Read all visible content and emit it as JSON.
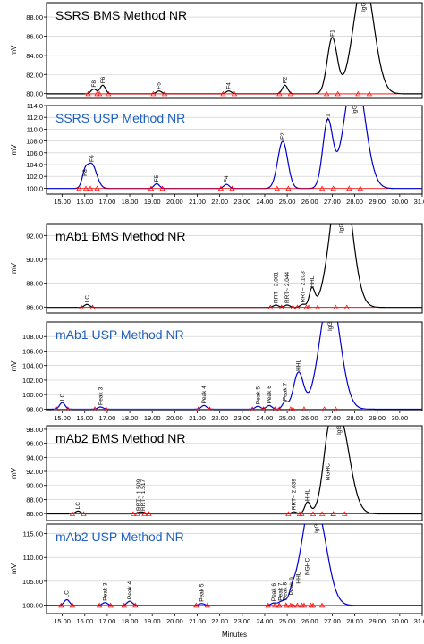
{
  "colors": {
    "black_trace": "#000000",
    "blue_trace": "#0000cc",
    "baseline": "#ff0000",
    "blue_title": "#1f5fbf",
    "frame": "#000000",
    "grid": "#c8c8c8"
  },
  "axis": {
    "ylabel": "mV",
    "xlabel": "Minutes"
  },
  "chart_data": [
    {
      "type": "line",
      "title": "SSRS  BMS Method NR",
      "title_color": "black",
      "trace": "black",
      "xlim": [
        14.3,
        31.0
      ],
      "ylim": [
        79.5,
        89.5
      ],
      "yticks": [
        80.0,
        82.0,
        84.0,
        86.0,
        88.0
      ],
      "xticks": [],
      "peaks": [
        {
          "label": "F8",
          "x": 16.4,
          "h": 0.5
        },
        {
          "label": "F6",
          "x": 16.8,
          "h": 0.9
        },
        {
          "label": "F5",
          "x": 19.3,
          "h": 0.3
        },
        {
          "label": "F4",
          "x": 22.4,
          "h": 0.3
        },
        {
          "label": "F2",
          "x": 24.9,
          "h": 0.9
        },
        {
          "label": "F1",
          "x": 27.0,
          "h": 5.8
        },
        {
          "label": "IgG",
          "x": 28.4,
          "h": 12.0
        }
      ]
    },
    {
      "type": "line",
      "title": "SSRS USP Method NR",
      "title_color": "blue",
      "trace": "blue",
      "xlim": [
        14.3,
        31.0
      ],
      "ylim": [
        99.0,
        114.0
      ],
      "yticks": [
        100.0,
        102.0,
        104.0,
        106.0,
        108.0,
        110.0,
        112.0,
        114.0
      ],
      "xticks": [
        "15.00",
        "16.00",
        "17.00",
        "18.00",
        "19.00",
        "20.00",
        "21.00",
        "22.00",
        "23.00",
        "24.00",
        "25.00",
        "26.00",
        "27.00",
        "28.00",
        "29.00",
        "30.00",
        "31.00"
      ],
      "peaks": [
        {
          "label": "F8",
          "x": 16.0,
          "h": 1.8
        },
        {
          "label": "F6",
          "x": 16.3,
          "h": 4.2
        },
        {
          "label": "F5",
          "x": 19.2,
          "h": 0.8
        },
        {
          "label": "F4",
          "x": 22.3,
          "h": 0.7
        },
        {
          "label": "F2",
          "x": 24.8,
          "h": 8.0
        },
        {
          "label": "F1",
          "x": 26.8,
          "h": 11.2
        },
        {
          "label": "IgG",
          "x": 28.0,
          "h": 20.0
        }
      ]
    },
    {
      "type": "line",
      "title": "mAb1  BMS Method NR",
      "title_color": "black",
      "trace": "black",
      "xlim": [
        14.3,
        31.0
      ],
      "ylim": [
        85.5,
        93.0
      ],
      "yticks": [
        86.0,
        88.0,
        90.0,
        92.0
      ],
      "xticks": [],
      "peaks": [
        {
          "label": "LC",
          "x": 16.1,
          "h": 0.25
        },
        {
          "label": "RRT~ 2.001",
          "x": 24.5,
          "h": 0.2
        },
        {
          "label": "RRT~ 2.044",
          "x": 25.0,
          "h": 0.2
        },
        {
          "label": "RRT~ 2.103",
          "x": 25.7,
          "h": 0.25
        },
        {
          "label": "HHL",
          "x": 26.1,
          "h": 1.5
        },
        {
          "label": "IgG",
          "x": 27.4,
          "h": 12.0
        }
      ]
    },
    {
      "type": "line",
      "title": "mAb1  USP Method NR",
      "title_color": "blue",
      "trace": "blue",
      "xlim": [
        14.3,
        31.0
      ],
      "ylim": [
        97.8,
        110.0
      ],
      "yticks": [
        98.0,
        100.0,
        102.0,
        104.0,
        106.0,
        108.0
      ],
      "xticks": [
        "15.00",
        "16.00",
        "17.00",
        "18.00",
        "19.00",
        "20.00",
        "21.00",
        "22.00",
        "23.00",
        "24.00",
        "25.00",
        "26.00",
        "27.00",
        "28.00",
        "29.00",
        "30.00"
      ],
      "peaks": [
        {
          "label": "LC",
          "x": 15.0,
          "h": 0.9
        },
        {
          "label": "Peak 3",
          "x": 16.7,
          "h": 0.3
        },
        {
          "label": "Peak 4",
          "x": 21.3,
          "h": 0.5
        },
        {
          "label": "Peak 5",
          "x": 23.7,
          "h": 0.4
        },
        {
          "label": "Peak 6",
          "x": 24.2,
          "h": 0.5
        },
        {
          "label": "Peak 7",
          "x": 24.9,
          "h": 0.9
        },
        {
          "label": "HHL",
          "x": 25.5,
          "h": 5.0
        },
        {
          "label": "IgG",
          "x": 26.9,
          "h": 16.0
        }
      ]
    },
    {
      "type": "line",
      "title": "mAb2  BMS Method NR",
      "title_color": "black",
      "trace": "black",
      "xlim": [
        14.3,
        31.0
      ],
      "ylim": [
        85.0,
        98.5
      ],
      "yticks": [
        86.0,
        88.0,
        90.0,
        92.0,
        94.0,
        96.0,
        98.0
      ],
      "xticks": [],
      "peaks": [
        {
          "label": "LC",
          "x": 15.7,
          "h": 0.4
        },
        {
          "label": "RRT~ 1.509",
          "x": 18.4,
          "h": 0.2
        },
        {
          "label": "RRT~ 1.517",
          "x": 18.6,
          "h": 0.2
        },
        {
          "label": "RRT~ 2.039",
          "x": 25.3,
          "h": 0.3
        },
        {
          "label": "HHL",
          "x": 25.9,
          "h": 1.6
        },
        {
          "label": "NGHC",
          "x": 26.8,
          "h": 4.5
        },
        {
          "label": "IgG",
          "x": 27.3,
          "h": 14.0
        }
      ]
    },
    {
      "type": "line",
      "title": "mAb2  USP Method NR",
      "title_color": "blue",
      "trace": "blue",
      "xlim": [
        14.3,
        31.0
      ],
      "ylim": [
        98.2,
        117.0
      ],
      "yticks": [
        100.0,
        105.0,
        110.0,
        115.0
      ],
      "xticks": [
        "15.00",
        "16.00",
        "17.00",
        "18.00",
        "19.00",
        "20.00",
        "21.00",
        "22.00",
        "23.00",
        "24.00",
        "25.00",
        "26.00",
        "27.00",
        "28.00",
        "29.00",
        "30.00",
        "31.00"
      ],
      "peaks": [
        {
          "label": "LC",
          "x": 15.2,
          "h": 1.2
        },
        {
          "label": "Peak 3",
          "x": 16.9,
          "h": 0.6
        },
        {
          "label": "Peak 4",
          "x": 18.0,
          "h": 0.9
        },
        {
          "label": "Peak 5",
          "x": 21.2,
          "h": 0.4
        },
        {
          "label": "Peak 6",
          "x": 24.4,
          "h": 0.5
        },
        {
          "label": "Peak 7",
          "x": 24.7,
          "h": 0.6
        },
        {
          "label": "Peak 8",
          "x": 24.9,
          "h": 0.7
        },
        {
          "label": "Peak 9",
          "x": 25.2,
          "h": 1.8
        },
        {
          "label": "HHL",
          "x": 25.5,
          "h": 4.2
        },
        {
          "label": "NGHC",
          "x": 25.9,
          "h": 6.0
        },
        {
          "label": "IgG",
          "x": 26.3,
          "h": 20.0
        }
      ]
    }
  ]
}
